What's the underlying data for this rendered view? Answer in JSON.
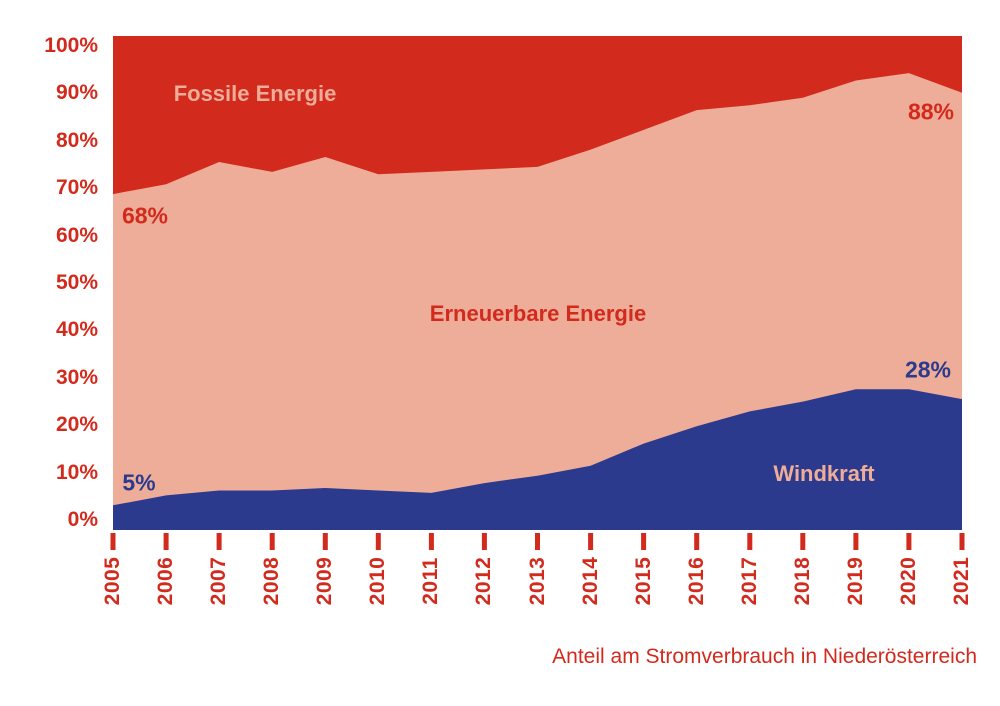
{
  "chart_data": {
    "type": "area",
    "stacked": true,
    "caption": "Anteil am Stromverbrauch in Niederösterreich",
    "grid": false,
    "legend": "none (labels placed inside areas)",
    "x_axis": {
      "categories": [
        "2005",
        "2006",
        "2007",
        "2008",
        "2009",
        "2010",
        "2011",
        "2012",
        "2013",
        "2014",
        "2015",
        "2016",
        "2017",
        "2018",
        "2019",
        "2020",
        "2021"
      ],
      "tick_color": "#D22A1D"
    },
    "y_axis": {
      "range": [
        0,
        100
      ],
      "unit": "%",
      "tick_labels": [
        "100%",
        "90%",
        "80%",
        "70%",
        "60%",
        "50%",
        "40%",
        "30%",
        "20%",
        "10%",
        "0%"
      ]
    },
    "series": [
      {
        "name": "Fossile Energie",
        "color": "#D22A1D",
        "values": [
          32,
          30,
          25.5,
          27.5,
          24.5,
          28,
          27.5,
          27,
          26.5,
          23,
          19,
          15,
          14,
          12.5,
          9,
          7.5,
          11.5
        ]
      },
      {
        "name": "Erneuerbare Energie",
        "color": "#EEAD99",
        "includes": [
          "Windkraft"
        ],
        "values": [
          68,
          70,
          74.5,
          72.5,
          75.5,
          72,
          72.5,
          73,
          73.5,
          77,
          81,
          85,
          86,
          87.5,
          91,
          92.5,
          88.5
        ]
      },
      {
        "name": "Windkraft",
        "color": "#2B3A8C",
        "values": [
          5,
          7,
          8,
          8,
          8.5,
          8,
          7.5,
          9.5,
          11,
          13,
          17.5,
          21,
          24,
          26,
          28.5,
          28.5,
          26.5
        ]
      }
    ],
    "annotations": [
      {
        "text": "68%",
        "target": "Erneuerbare Energie, 2005",
        "color": "#D22A1D"
      },
      {
        "text": "88%",
        "target": "Erneuerbare Energie, 2021",
        "color": "#D22A1D"
      },
      {
        "text": "5%",
        "target": "Windkraft, 2005",
        "color": "#2B3A8C"
      },
      {
        "text": "28%",
        "target": "Windkraft, 2020",
        "color": "#2B3A8C"
      }
    ]
  }
}
